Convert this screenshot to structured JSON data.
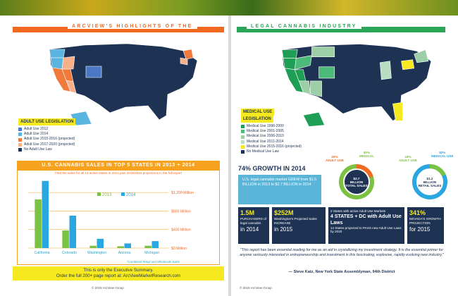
{
  "header": {
    "left_prefix": "ARCVIEW'S",
    "left_text": "HIGHLIGHTS OF THE",
    "right_text": "LEGAL CANNABIS INDUSTRY"
  },
  "left_legend": {
    "title": "ADULT USE LEGISLATION",
    "items": [
      {
        "label": "Adult Use 2012",
        "color": "#4a78c4"
      },
      {
        "label": "Adult Use 2014",
        "color": "#5ab4e0"
      },
      {
        "label": "Adult Use 2015-2016 (projected)",
        "color": "#f07a3c"
      },
      {
        "label": "Adult Use 2017-2020 (projected)",
        "color": "#f7b08a"
      },
      {
        "label": "No Adult Use Law",
        "color": "#1e3354"
      }
    ]
  },
  "right_legend": {
    "title1": "MEDICAL USE",
    "title2": "LEGISLATION",
    "items": [
      {
        "label": "Medical Use 1996-2000",
        "color": "#1f9e56"
      },
      {
        "label": "Medical Use 2001-2005",
        "color": "#4cba78"
      },
      {
        "label": "Medical Use 2006-2010",
        "color": "#9ccfa5"
      },
      {
        "label": "Medical Use 2011-2014",
        "color": "#b9ddc2"
      },
      {
        "label": "Medical Use 2015-2016 (projected)",
        "color": "#f6e91f"
      },
      {
        "label": "No Medical Use Law",
        "color": "#1e3354"
      }
    ]
  },
  "chart_header": "U.S. CANNABIS SALES IN TOP 5 STATES IN 2013 + 2014",
  "chart_sub": "Find the sales for all 14 active states in 2014 plus 2015/2016 projections in the full report",
  "chart_note": "*Combined Retail and Wholesale Sales",
  "chart_data": {
    "type": "bar",
    "categories": [
      "California",
      "Colorado",
      "Washington",
      "Arizona",
      "Michigan"
    ],
    "series": [
      {
        "name": "2013",
        "values": [
          1050,
          380,
          50,
          40,
          50
        ],
        "color": "#7cc242"
      },
      {
        "name": "2014",
        "values": [
          1450,
          700,
          200,
          100,
          150
        ],
        "color": "#2aa6e0"
      }
    ],
    "ylim": [
      0,
      1400
    ],
    "yticks": [
      0,
      400,
      800,
      1200
    ],
    "ytick_labels": [
      "$0 Million",
      "$400 Million",
      "$800 Million",
      "$1,200 Million"
    ]
  },
  "exec": {
    "line1": "This is only the Executive Summary.",
    "line2": "Order the full 200+ page report at: ArcViewMarketResearch.com"
  },
  "copyright_left": "© 2015 ArcView Group",
  "copyright_right": "© 2015 ArcView Group",
  "donuts": [
    {
      "pct": "20%",
      "pct_label": "ADULT USE",
      "main": "80%",
      "main_label": "MEDICAL",
      "center1": "$2.7",
      "center2": "BILLION",
      "center3": "TOTAL SALES",
      "accent": "#7cc242",
      "minor": "#f26a21"
    },
    {
      "pct": "18%",
      "pct_label": "ADULT USE",
      "main": "82%",
      "main_label": "MEDICAL USE",
      "center1": "$1.2",
      "center2": "BILLION",
      "center3": "RETAIL SALES",
      "accent": "#2aa6e0",
      "minor": "#7cc242"
    }
  ],
  "growth": {
    "headline": "74% GROWTH IN 2014",
    "body": "U.S. legal cannabis market GREW from $1.5 BILLION in 2013 to $2.7 BILLION in 2014"
  },
  "stats": [
    {
      "big": "1.5M",
      "text": "PURCHASERS of legal cannabis",
      "year": "in 2014"
    },
    {
      "big": "$252M",
      "text": "Washington's Projected Sales INCREASE",
      "year": "in 2015"
    },
    {
      "line1": "2 States with active Adult Use Markets",
      "line2": "4 STATES + DC with Adult Use Laws",
      "line3": "14 States projected to PASS new Adult Use Laws by 2020"
    },
    {
      "big": "341%",
      "text": "NEVADA'S GROWTH PROJECTION",
      "year": "for 2015"
    }
  ],
  "quote": {
    "text": "\"This report has been essential reading for me as an aid in crystallizing my investment strategy. It is the essential primer for anyone seriously interested in entrepreneurship and investment in this fascinating, explosive, rapidly evolving new industry.\"",
    "by": "— Steve Katz, New York State Assemblyman, 94th District"
  }
}
